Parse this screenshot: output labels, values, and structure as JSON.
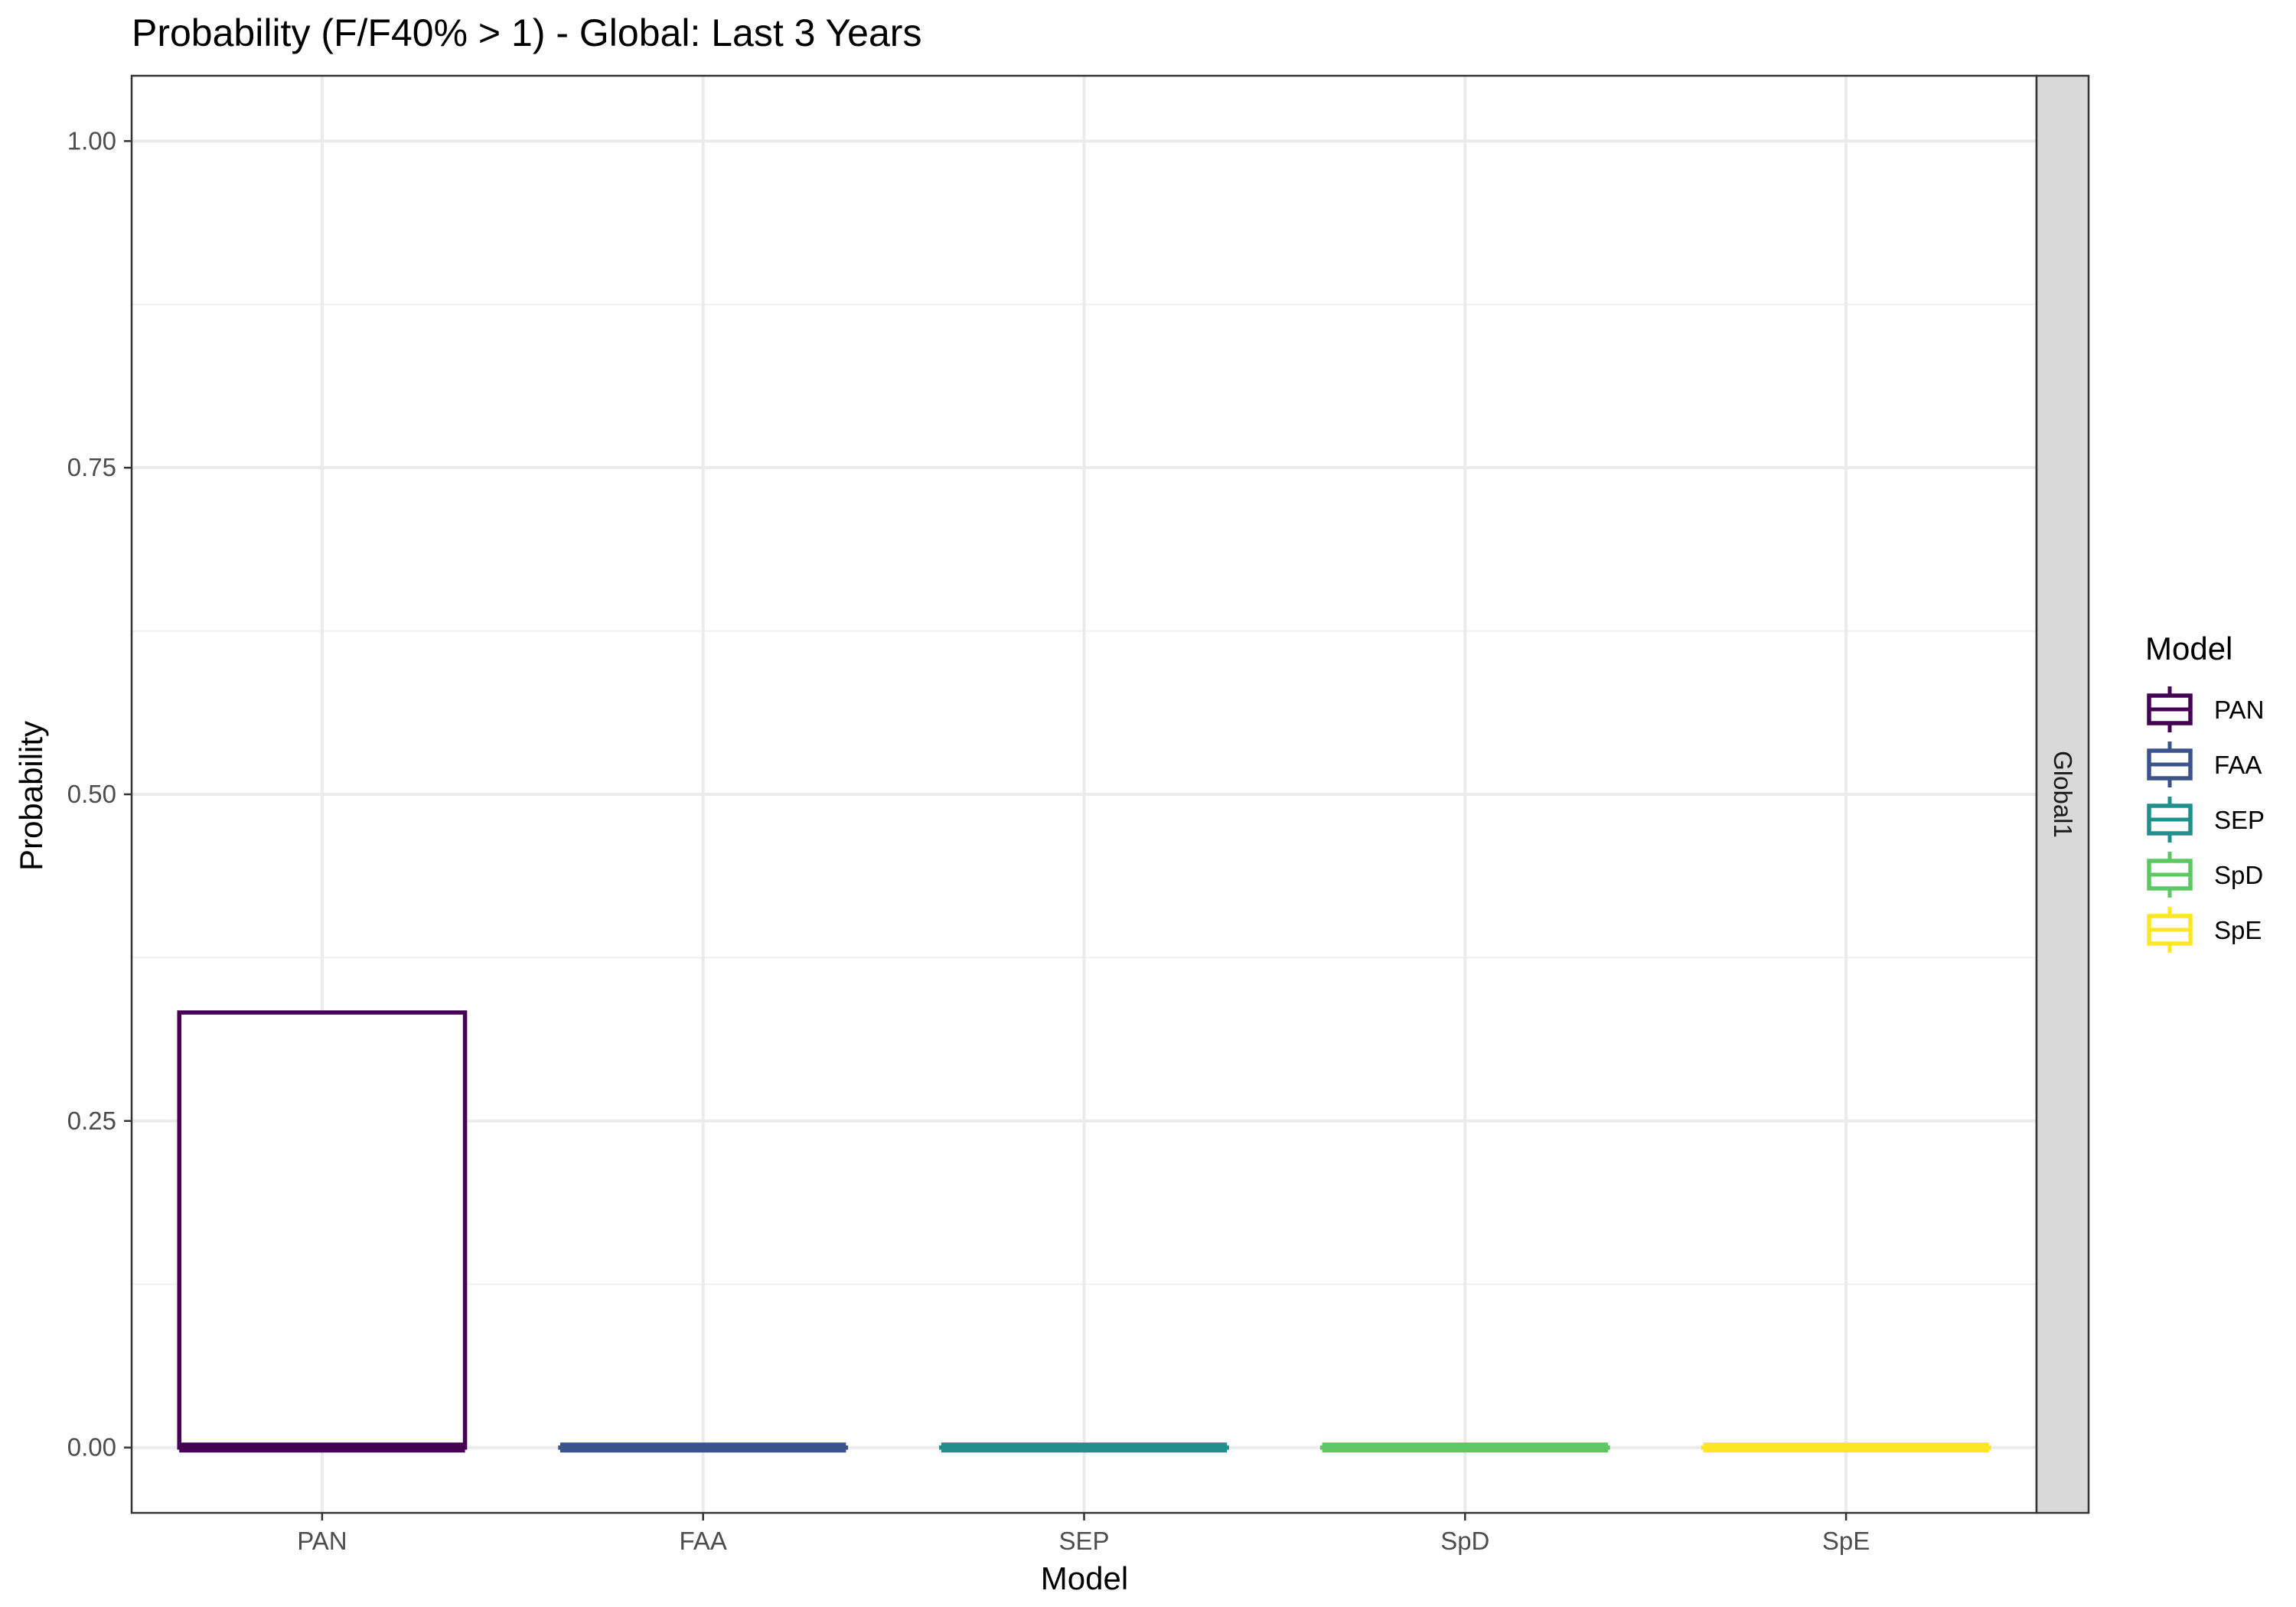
{
  "chart_data": {
    "type": "boxplot",
    "title": "Probability (F/F40% > 1) - Global: Last 3 Years",
    "xlabel": "Model",
    "ylabel": "Probability",
    "ylim": [
      -0.05,
      1.05
    ],
    "yticks": [
      "0.00",
      "0.25",
      "0.50",
      "0.75",
      "1.00"
    ],
    "ytick_values": [
      0,
      0.25,
      0.5,
      0.75,
      1.0
    ],
    "categories": [
      "PAN",
      "FAA",
      "SEP",
      "SpD",
      "SpE"
    ],
    "facet_label": "Global1",
    "legend": {
      "title": "Model",
      "position": "right"
    },
    "grid": true,
    "series": [
      {
        "name": "PAN",
        "color": "#440154",
        "min": 0,
        "q1": 0,
        "median": 0,
        "q3": 0.333,
        "max": 0.333
      },
      {
        "name": "FAA",
        "color": "#3B528B",
        "min": 0,
        "q1": 0,
        "median": 0,
        "q3": 0,
        "max": 0
      },
      {
        "name": "SEP",
        "color": "#21908C",
        "min": 0,
        "q1": 0,
        "median": 0,
        "q3": 0,
        "max": 0
      },
      {
        "name": "SpD",
        "color": "#5DC863",
        "min": 0,
        "q1": 0,
        "median": 0,
        "q3": 0,
        "max": 0
      },
      {
        "name": "SpE",
        "color": "#FDE725",
        "min": 0,
        "q1": 0,
        "median": 0,
        "q3": 0,
        "max": 0
      }
    ]
  }
}
